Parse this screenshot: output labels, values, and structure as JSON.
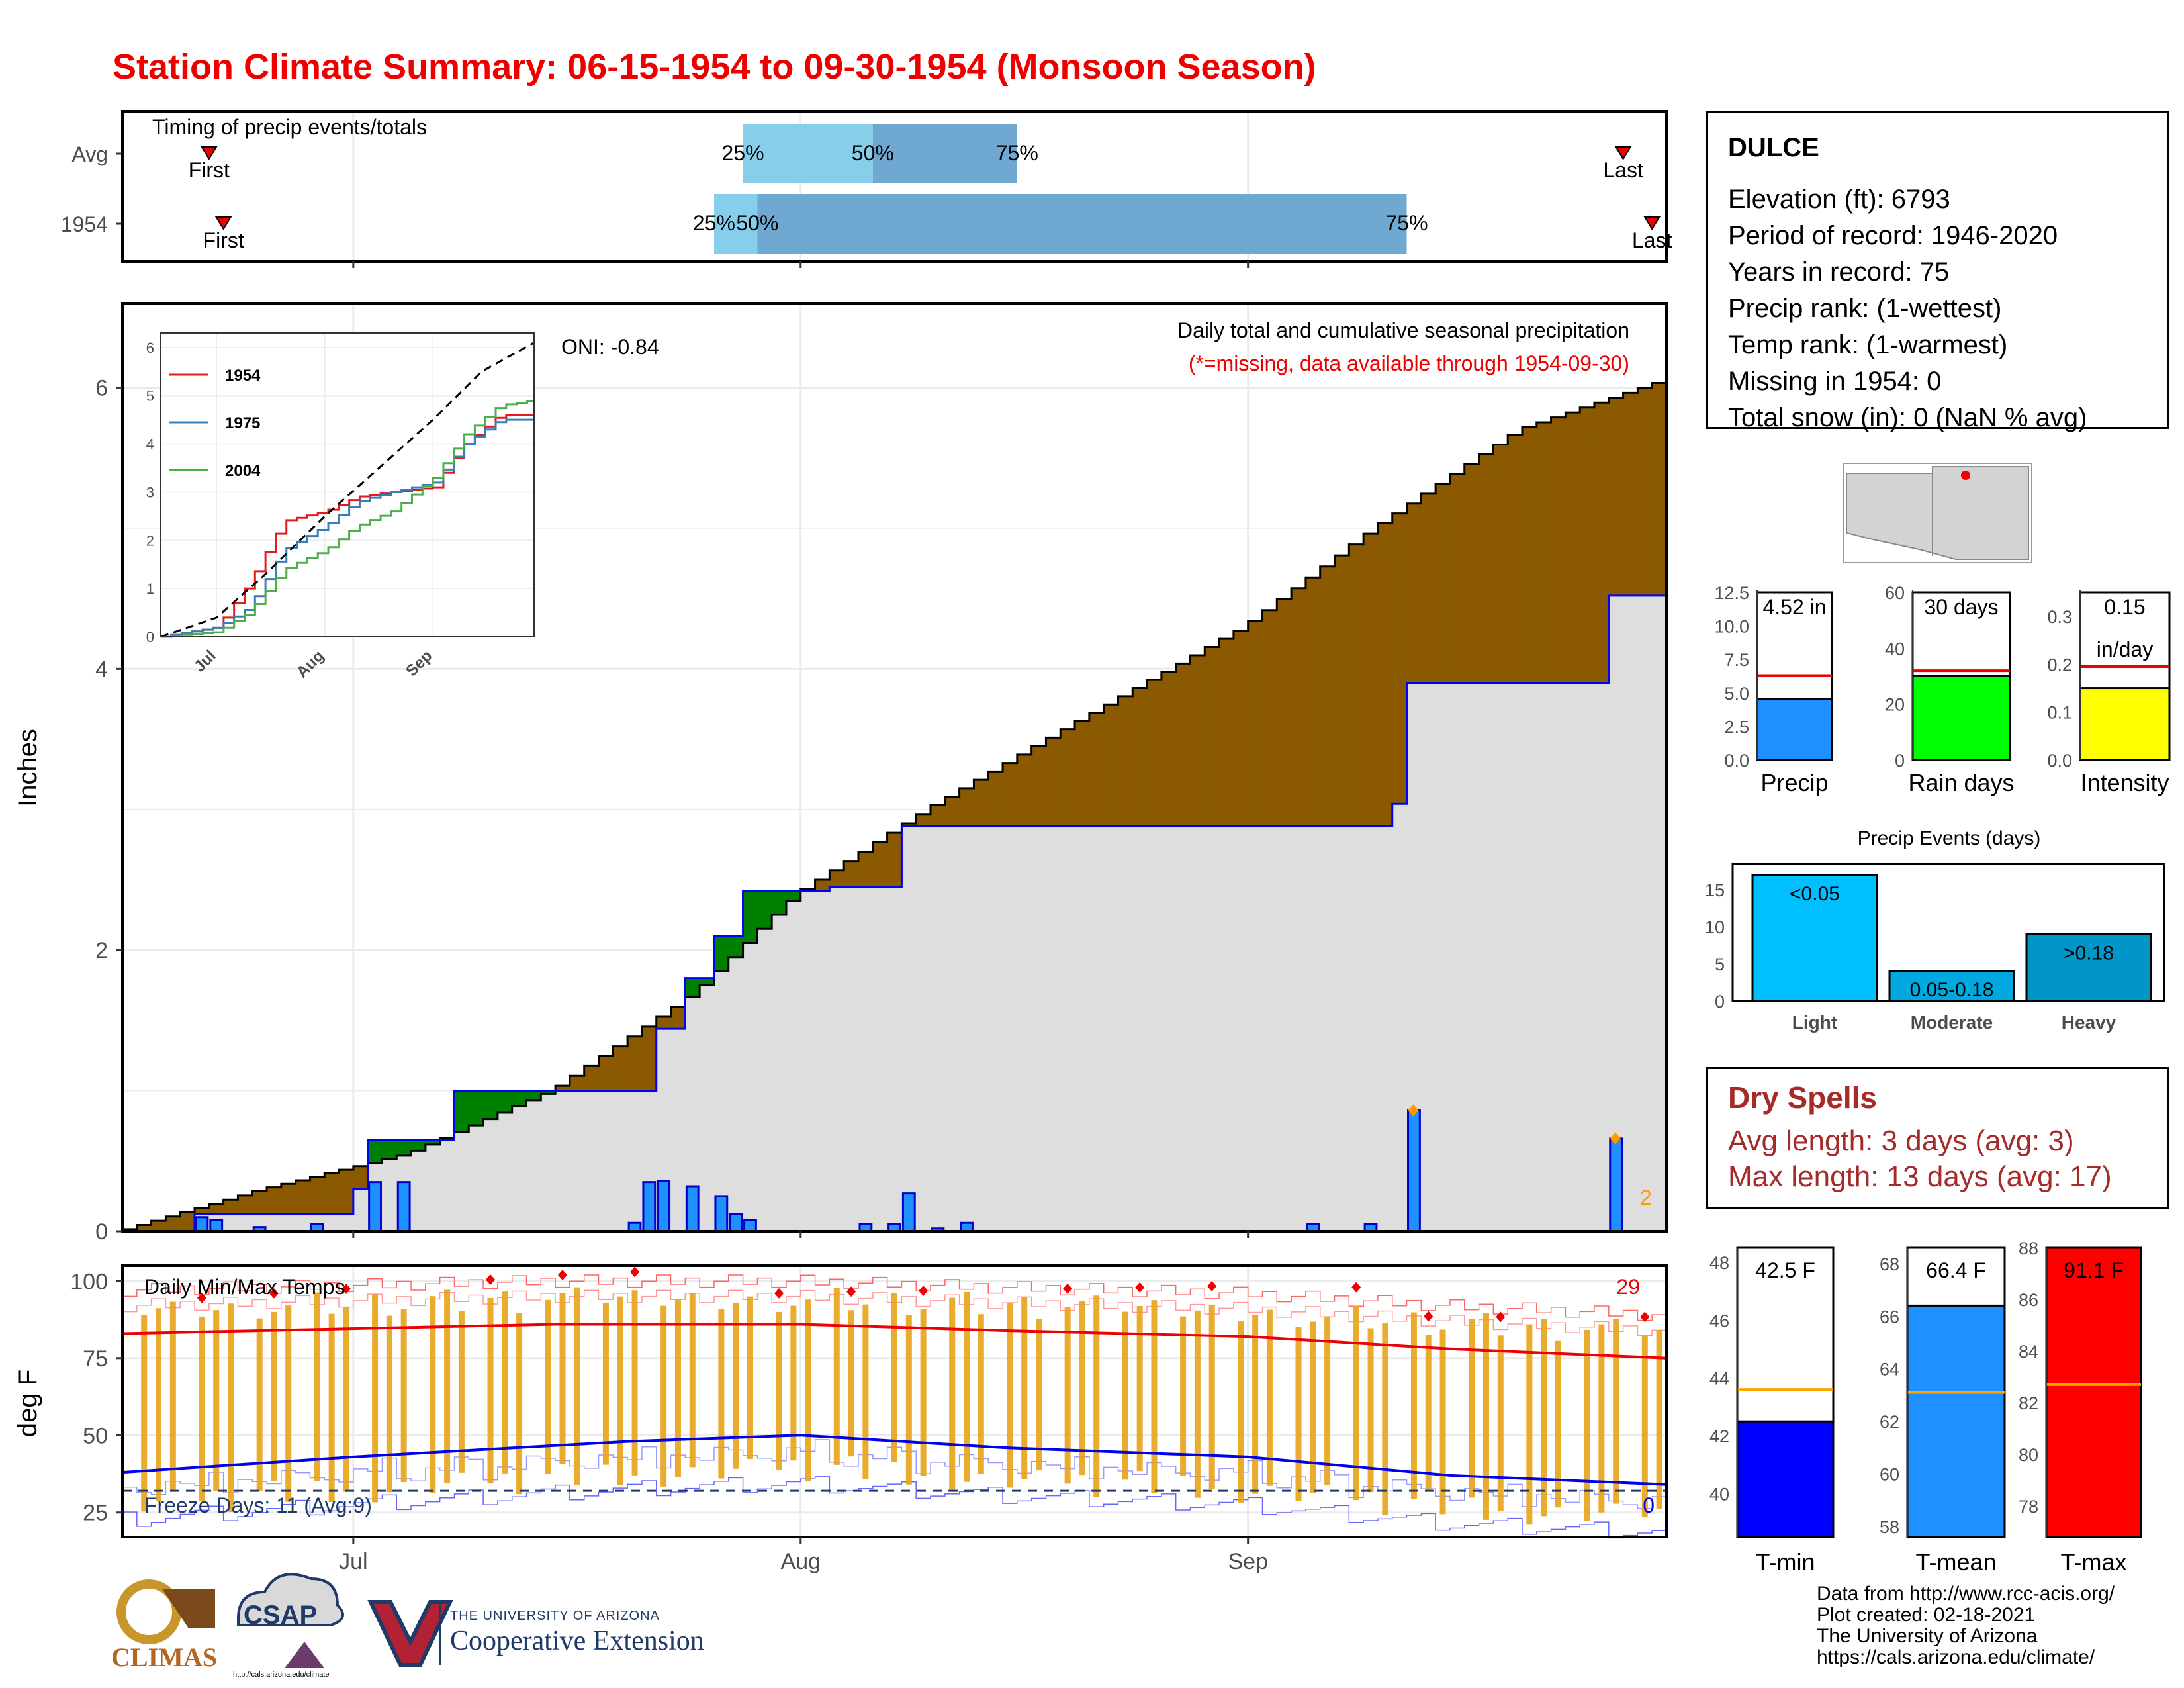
{
  "page_title": "Station Climate Summary: 06-15-1954 to 09-30-1954 (Monsoon Season)",
  "timing_panel": {
    "label": "Timing of precip events/totals",
    "rows": [
      {
        "name": "Avg",
        "first": "Jun 21",
        "p25": "Jul 28",
        "p50": "Aug 6",
        "p75": "Aug 16",
        "last": "Sep 27"
      },
      {
        "name": "1954",
        "first": "Jun 22",
        "p25": "Jul 26",
        "p50": "Jul 29",
        "p75": "Sep 12",
        "last": "Sep 29"
      }
    ],
    "first_label": "First",
    "last_label": "Last",
    "pct_labels": [
      "25%",
      "50%",
      "75%"
    ]
  },
  "main_panel": {
    "ylabel": "Inches",
    "caption": "Daily total and cumulative seasonal precipitation",
    "missing_note": "(*=missing, data available through 1954-09-30)",
    "oni": "ONI: -0.84",
    "count_label": "2",
    "x_ticks": [
      "Jul",
      "Aug",
      "Sep"
    ],
    "y_ticks": [
      "0",
      "2",
      "4",
      "6"
    ]
  },
  "inset": {
    "legend": [
      "1954",
      "1975",
      "2004"
    ],
    "x_ticks": [
      "Jul",
      "Aug",
      "Sep"
    ],
    "y_ticks": [
      "0",
      "1",
      "2",
      "3",
      "4",
      "5",
      "6"
    ]
  },
  "temp_panel": {
    "ylabel": "deg F",
    "label": "Daily Min/Max Temps",
    "freeze_label": "Freeze Days: 11 (Avg:9)",
    "hot_count": "29",
    "cold_count": "0",
    "y_ticks": [
      "25",
      "50",
      "75",
      "100"
    ]
  },
  "station": {
    "name": "DULCE",
    "lines": [
      "Elevation (ft): 6793",
      "Period of record: 1946-2020",
      "Years in record: 75",
      "Precip rank:  (1-wettest)",
      "Temp rank:  (1-warmest)",
      "Missing in 1954: 0",
      "Total snow (in): 0 (NaN % avg)"
    ]
  },
  "season_bars": [
    {
      "label": "Precip",
      "value_label": "4.52 in",
      "value": 4.52,
      "avg": 6.3,
      "ymax": 12.5,
      "ticks": [
        "0.0",
        "2.5",
        "5.0",
        "7.5",
        "10.0",
        "12.5"
      ],
      "color": "#1e90ff"
    },
    {
      "label": "Rain days",
      "value_label": "30 days",
      "value": 30,
      "avg": 32,
      "ymax": 60,
      "ticks": [
        "0",
        "20",
        "40",
        "60"
      ],
      "color": "#00ff00"
    },
    {
      "label": "Intensity",
      "value_label": "0.15",
      "value_label2": "in/day",
      "value": 0.15,
      "avg": 0.195,
      "ymax": 0.35,
      "ticks": [
        "0.0",
        "0.1",
        "0.2",
        "0.3"
      ],
      "color": "#ffff00"
    }
  ],
  "events": {
    "title": "Precip Events (days)",
    "categories": [
      "Light",
      "Moderate",
      "Heavy"
    ],
    "values": [
      17,
      4,
      9
    ],
    "bar_labels": [
      "<0.05",
      "0.05-0.18",
      ">0.18"
    ],
    "y_ticks": [
      "0",
      "5",
      "10",
      "15"
    ]
  },
  "dry_spells": {
    "title": "Dry Spells",
    "avg_line": "Avg length: 3 days (avg: 3)",
    "max_line": "Max length: 13 days (avg: 17)"
  },
  "temp_bars": [
    {
      "label": "T-min",
      "value_label": "42.5 F",
      "value": 42.5,
      "avg": 43.6,
      "ymin": 38.5,
      "ymax": 48.5,
      "ticks": [
        "40",
        "42",
        "44",
        "46",
        "48"
      ],
      "color": "#0000ff"
    },
    {
      "label": "T-mean",
      "value_label": "66.4 F",
      "value": 66.4,
      "avg": 63.1,
      "ymin": 57.6,
      "ymax": 68.6,
      "ticks": [
        "58",
        "60",
        "62",
        "64",
        "66",
        "68"
      ],
      "color": "#1e90ff"
    },
    {
      "label": "T-max",
      "value_label": "91.1 F",
      "value": 91.1,
      "avg": 82.7,
      "ymin": 76.8,
      "ymax": 88.0,
      "ticks": [
        "78",
        "80",
        "82",
        "84",
        "86",
        "88"
      ],
      "color": "#ff0000"
    }
  ],
  "credits": [
    "Data from http://www.rcc-acis.org/",
    "Plot created: 02-18-2021",
    "The University of Arizona",
    "https://cals.arizona.edu/climate/"
  ],
  "logos": {
    "climas": "CLIMAS",
    "csap": "CSAP",
    "csap_url": "http://cals.arizona.edu/climate",
    "ua_small": "THE UNIVERSITY OF ARIZONA",
    "ua_big": "Cooperative Extension"
  },
  "chart_data": [
    {
      "type": "area",
      "title": "Daily total and cumulative seasonal precipitation",
      "ylabel": "Inches",
      "ylim": [
        0,
        6.6
      ],
      "x_range": [
        "1954-06-15",
        "1954-09-30"
      ],
      "series": [
        {
          "name": "Avg cumulative",
          "x": [
            "1954-06-15",
            "1954-06-25",
            "1954-07-05",
            "1954-07-15",
            "1954-07-25",
            "1954-08-01",
            "1954-08-10",
            "1954-08-20",
            "1954-09-01",
            "1954-09-10",
            "1954-09-20",
            "1954-09-30"
          ],
          "y": [
            0,
            0.3,
            0.55,
            1.0,
            1.7,
            2.4,
            3.0,
            3.6,
            4.3,
            5.0,
            5.7,
            6.05
          ]
        },
        {
          "name": "1954 cumulative",
          "x": [
            "1954-06-15",
            "1954-06-20",
            "1954-07-01",
            "1954-07-02",
            "1954-07-08",
            "1954-07-22",
            "1954-07-24",
            "1954-07-26",
            "1954-07-28",
            "1954-08-03",
            "1954-08-08",
            "1954-09-11",
            "1954-09-12",
            "1954-09-25",
            "1954-09-26",
            "1954-09-30"
          ],
          "y": [
            0,
            0.12,
            0.3,
            0.65,
            1.0,
            1.44,
            1.8,
            2.1,
            2.42,
            2.45,
            2.88,
            3.04,
            3.9,
            3.9,
            4.52,
            4.52
          ]
        },
        {
          "name": "1954 daily",
          "x": [
            "1954-06-20",
            "1954-06-21",
            "1954-06-24",
            "1954-06-28",
            "1954-07-02",
            "1954-07-04",
            "1954-07-20",
            "1954-07-21",
            "1954-07-22",
            "1954-07-24",
            "1954-07-26",
            "1954-07-27",
            "1954-07-28",
            "1954-08-05",
            "1954-08-07",
            "1954-08-08",
            "1954-08-10",
            "1954-08-12",
            "1954-09-05",
            "1954-09-09",
            "1954-09-12",
            "1954-09-26"
          ],
          "y": [
            0.1,
            0.08,
            0.03,
            0.05,
            0.35,
            0.35,
            0.06,
            0.35,
            0.36,
            0.32,
            0.25,
            0.12,
            0.08,
            0.05,
            0.05,
            0.27,
            0.02,
            0.06,
            0.05,
            0.05,
            0.86,
            0.66
          ]
        }
      ]
    },
    {
      "type": "line",
      "title": "",
      "ylabel": "",
      "ylim": [
        0,
        6.3
      ],
      "series": [
        {
          "name": "1954",
          "x": [
            "06-15",
            "07-01",
            "07-10",
            "07-20",
            "08-01",
            "08-10",
            "08-20",
            "09-01",
            "09-10",
            "09-20",
            "09-30"
          ],
          "y": [
            0,
            0.2,
            1.1,
            2.4,
            2.6,
            2.9,
            3.0,
            3.1,
            4.0,
            4.6,
            4.6
          ]
        },
        {
          "name": "1975",
          "x": [
            "06-15",
            "07-01",
            "07-10",
            "07-20",
            "08-01",
            "08-10",
            "08-20",
            "09-01",
            "09-10",
            "09-20",
            "09-30"
          ],
          "y": [
            0,
            0.2,
            0.6,
            1.8,
            2.3,
            2.8,
            3.0,
            3.2,
            4.0,
            4.5,
            4.5
          ]
        },
        {
          "name": "2004",
          "x": [
            "06-15",
            "07-01",
            "07-10",
            "07-20",
            "08-01",
            "08-10",
            "08-20",
            "09-01",
            "09-10",
            "09-20",
            "09-30"
          ],
          "y": [
            0,
            0.1,
            0.5,
            1.4,
            1.8,
            2.3,
            2.6,
            3.3,
            4.2,
            4.8,
            4.9
          ]
        },
        {
          "name": "Avg",
          "x": [
            "06-15",
            "07-01",
            "07-15",
            "08-01",
            "08-15",
            "09-01",
            "09-15",
            "09-30"
          ],
          "y": [
            0,
            0.4,
            1.3,
            2.5,
            3.4,
            4.5,
            5.5,
            6.1
          ]
        }
      ]
    },
    {
      "type": "line",
      "title": "Daily Min/Max Temps",
      "ylabel": "deg F",
      "ylim": [
        17,
        105
      ],
      "series": [
        {
          "name": "Avg max",
          "x": [
            "06-15",
            "07-15",
            "08-01",
            "08-15",
            "09-01",
            "09-15",
            "09-30"
          ],
          "y": [
            83,
            86,
            86,
            84,
            82,
            78,
            75
          ]
        },
        {
          "name": "Avg min",
          "x": [
            "06-15",
            "07-01",
            "07-20",
            "08-01",
            "08-15",
            "09-01",
            "09-15",
            "09-30"
          ],
          "y": [
            38,
            43,
            48,
            50,
            46,
            43,
            37,
            34
          ]
        },
        {
          "name": "Freeze threshold",
          "x": [
            "06-15",
            "09-30"
          ],
          "y": [
            32,
            32
          ]
        }
      ]
    }
  ]
}
